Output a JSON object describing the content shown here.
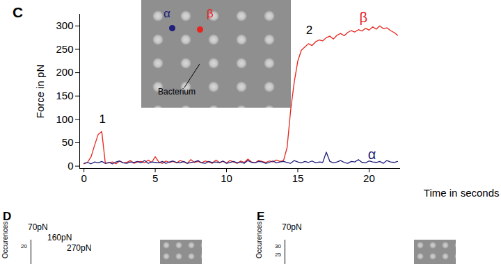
{
  "chart_data": {
    "type": "line",
    "panel_label": "C",
    "x_label": "Time in seconds",
    "y_label": "Force in pN",
    "xlim": [
      -0.3,
      22.2
    ],
    "ylim": [
      -5,
      325
    ],
    "xticks": [
      0,
      5,
      10,
      15,
      20
    ],
    "yticks": [
      0,
      50,
      100,
      150,
      200,
      250,
      300
    ],
    "grid": false,
    "x": [
      0,
      0.25,
      0.5,
      0.75,
      1,
      1.25,
      1.5,
      1.75,
      2,
      2.25,
      2.5,
      2.75,
      3,
      3.25,
      3.5,
      3.75,
      4,
      4.25,
      4.5,
      4.75,
      5,
      5.25,
      5.5,
      5.75,
      6,
      6.25,
      6.5,
      6.75,
      7,
      7.25,
      7.5,
      7.75,
      8,
      8.25,
      8.5,
      8.75,
      9,
      9.25,
      9.5,
      9.75,
      10,
      10.25,
      10.5,
      10.75,
      11,
      11.25,
      11.5,
      11.75,
      12,
      12.25,
      12.5,
      12.75,
      13,
      13.25,
      13.5,
      13.75,
      14,
      14.25,
      14.5,
      14.75,
      15,
      15.25,
      15.5,
      15.75,
      16,
      16.25,
      16.5,
      16.75,
      17,
      17.25,
      17.5,
      17.75,
      18,
      18.25,
      18.5,
      18.75,
      19,
      19.25,
      19.5,
      19.75,
      20,
      20.25,
      20.5,
      20.75,
      21,
      21.25,
      21.5,
      21.75,
      22
    ],
    "series": [
      {
        "name": "β",
        "color": "#e8241c",
        "label_position": {
          "x": 19.6,
          "y": 318
        },
        "values": [
          5,
          8,
          20,
          45,
          68,
          74,
          6,
          7,
          9,
          5,
          11,
          7,
          8,
          12,
          6,
          9,
          10,
          7,
          13,
          8,
          20,
          9,
          6,
          11,
          8,
          10,
          7,
          12,
          9,
          6,
          14,
          8,
          10,
          7,
          11,
          9,
          6,
          13,
          8,
          10,
          7,
          12,
          9,
          6,
          11,
          8,
          15,
          9,
          7,
          12,
          10,
          8,
          11,
          9,
          13,
          10,
          12,
          40,
          120,
          180,
          225,
          248,
          255,
          262,
          258,
          266,
          270,
          268,
          275,
          278,
          272,
          280,
          284,
          279,
          286,
          290,
          287,
          292,
          289,
          295,
          291,
          298,
          293,
          300,
          294,
          296,
          290,
          286,
          280
        ]
      },
      {
        "name": "α",
        "color": "#1f1f7a",
        "label_position": {
          "x": 20.2,
          "y": 24
        },
        "values": [
          6,
          8,
          5,
          9,
          7,
          10,
          6,
          8,
          5,
          9,
          11,
          7,
          6,
          9,
          8,
          10,
          7,
          12,
          6,
          9,
          8,
          7,
          10,
          6,
          9,
          11,
          8,
          7,
          10,
          6,
          8,
          9,
          12,
          7,
          6,
          10,
          8,
          9,
          7,
          11,
          6,
          8,
          10,
          7,
          9,
          6,
          12,
          8,
          7,
          10,
          9,
          6,
          8,
          11,
          7,
          9,
          10,
          8,
          6,
          12,
          9,
          7,
          10,
          8,
          11,
          7,
          9,
          8,
          30,
          10,
          7,
          9,
          12,
          8,
          6,
          10,
          9,
          14,
          8,
          7,
          11,
          9,
          8,
          10,
          6,
          12,
          9,
          8,
          10
        ]
      }
    ],
    "annotations": [
      {
        "text": "1",
        "x": 1.3,
        "y": 100
      },
      {
        "text": "2",
        "x": 15.8,
        "y": 290
      }
    ],
    "inset": {
      "labels": [
        "α",
        "β",
        "Bacterium"
      ]
    }
  },
  "other_panels": [
    {
      "label": "D",
      "y_label": "Occurences",
      "yticks": [
        20
      ],
      "peaks": [
        "70pN",
        "160pN",
        "270pN"
      ]
    },
    {
      "label": "E",
      "y_label": "Occurences",
      "yticks": [
        30,
        25
      ],
      "peaks": [
        "70pN"
      ]
    }
  ]
}
